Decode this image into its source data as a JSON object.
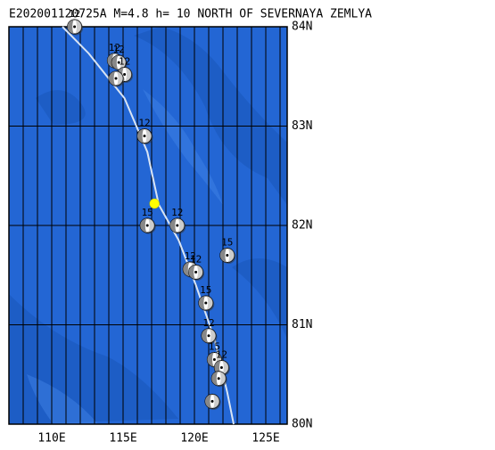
{
  "chart_data": {
    "type": "map",
    "title": "E202001120725A M=4.8 h= 10 NORTH OF SEVERNAYA ZEMLYA",
    "xlim": [
      107,
      126.5
    ],
    "ylim": [
      80,
      84
    ],
    "xticks": [
      {
        "value": 110,
        "label": "110E"
      },
      {
        "value": 115,
        "label": "115E"
      },
      {
        "value": 120,
        "label": "120E"
      },
      {
        "value": 125,
        "label": "125E"
      }
    ],
    "yticks": [
      {
        "value": 80,
        "label": "80N"
      },
      {
        "value": 81,
        "label": "81N"
      },
      {
        "value": 82,
        "label": "82N"
      },
      {
        "value": 83,
        "label": "83N"
      },
      {
        "value": 84,
        "label": "84N"
      }
    ],
    "xgrid": [
      108,
      109,
      110,
      111,
      112,
      113,
      114,
      115,
      116,
      117,
      118,
      119,
      120,
      121,
      122,
      123,
      124,
      125,
      126
    ],
    "ocean_color": "#2366d4",
    "boundary": {
      "color": "#d8e4f4",
      "lon": [
        110.75,
        112.6,
        115.1,
        116.7,
        117.5,
        118.9,
        120.1,
        121.4,
        122.3,
        122.75
      ],
      "lat": [
        84.0,
        83.73,
        83.28,
        82.74,
        82.21,
        81.85,
        81.4,
        80.86,
        80.32,
        80.0
      ]
    },
    "epicenter": {
      "lon": 117.2,
      "lat": 82.22,
      "color": "#ffff00"
    },
    "mechanisms": [
      {
        "lon": 111.6,
        "lat": 84.0,
        "label": "12"
      },
      {
        "lon": 114.4,
        "lat": 83.66,
        "label": "12"
      },
      {
        "lon": 114.7,
        "lat": 83.64,
        "label": "12"
      },
      {
        "lon": 115.1,
        "lat": 83.52,
        "label": "12"
      },
      {
        "lon": 114.5,
        "lat": 83.48,
        "label": null
      },
      {
        "lon": 116.5,
        "lat": 82.9,
        "label": "12"
      },
      {
        "lon": 116.7,
        "lat": 82.0,
        "label": "15"
      },
      {
        "lon": 118.8,
        "lat": 82.0,
        "label": "12"
      },
      {
        "lon": 122.3,
        "lat": 81.7,
        "label": "15"
      },
      {
        "lon": 119.7,
        "lat": 81.56,
        "label": "12"
      },
      {
        "lon": 120.1,
        "lat": 81.53,
        "label": "12"
      },
      {
        "lon": 120.8,
        "lat": 81.22,
        "label": "15"
      },
      {
        "lon": 121.0,
        "lat": 80.89,
        "label": "12"
      },
      {
        "lon": 121.4,
        "lat": 80.65,
        "label": "15"
      },
      {
        "lon": 121.9,
        "lat": 80.57,
        "label": "12"
      },
      {
        "lon": 121.7,
        "lat": 80.46,
        "label": null
      },
      {
        "lon": 121.25,
        "lat": 80.23,
        "label": null
      }
    ]
  }
}
